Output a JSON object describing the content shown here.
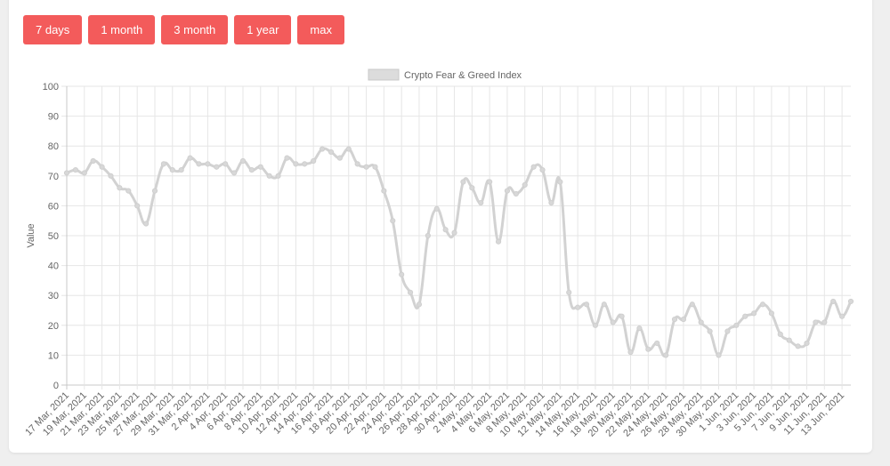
{
  "range_buttons": [
    {
      "label": "7 days"
    },
    {
      "label": "1 month"
    },
    {
      "label": "3 month"
    },
    {
      "label": "1 year"
    },
    {
      "label": "max"
    }
  ],
  "colors": {
    "button_bg": "#f35b5b",
    "line": "#d2d2d2",
    "grid": "#e6e6e6",
    "axis_text": "#666666"
  },
  "chart_data": {
    "type": "line",
    "title": "",
    "legend": [
      "Crypto Fear & Greed Index"
    ],
    "legend_position": "top",
    "xlabel": "",
    "ylabel": "Value",
    "ylim": [
      0,
      100
    ],
    "yticks": [
      0,
      10,
      20,
      30,
      40,
      50,
      60,
      70,
      80,
      90,
      100
    ],
    "grid": true,
    "x_tick_labels": [
      "17 Mar, 2021",
      "19 Mar, 2021",
      "21 Mar, 2021",
      "23 Mar, 2021",
      "25 Mar, 2021",
      "27 Mar, 2021",
      "29 Mar, 2021",
      "31 Mar, 2021",
      "2 Apr, 2021",
      "4 Apr, 2021",
      "6 Apr, 2021",
      "8 Apr, 2021",
      "10 Apr, 2021",
      "12 Apr, 2021",
      "14 Apr, 2021",
      "16 Apr, 2021",
      "18 Apr, 2021",
      "20 Apr, 2021",
      "22 Apr, 2021",
      "24 Apr, 2021",
      "26 Apr, 2021",
      "28 Apr, 2021",
      "30 Apr, 2021",
      "2 May, 2021",
      "4 May, 2021",
      "6 May, 2021",
      "8 May, 2021",
      "10 May, 2021",
      "12 May, 2021",
      "14 May, 2021",
      "16 May, 2021",
      "18 May, 2021",
      "20 May, 2021",
      "22 May, 2021",
      "24 May, 2021",
      "26 May, 2021",
      "28 May, 2021",
      "30 May, 2021",
      "1 Jun, 2021",
      "3 Jun, 2021",
      "5 Jun, 2021",
      "7 Jun, 2021",
      "9 Jun, 2021",
      "11 Jun, 2021",
      "13 Jun, 2021"
    ],
    "series": [
      {
        "name": "Crypto Fear & Greed Index",
        "values": [
          71,
          72,
          71,
          75,
          73,
          70,
          66,
          65,
          60,
          54,
          65,
          74,
          72,
          72,
          76,
          74,
          74,
          73,
          74,
          71,
          75,
          72,
          73,
          70,
          70,
          76,
          74,
          74,
          75,
          79,
          78,
          76,
          79,
          74,
          73,
          73,
          65,
          55,
          37,
          31,
          27,
          50,
          59,
          52,
          51,
          68,
          66,
          61,
          68,
          48,
          65,
          64,
          67,
          73,
          72,
          61,
          68,
          31,
          26,
          27,
          20,
          27,
          21,
          23,
          11,
          19,
          12,
          14,
          10,
          22,
          22,
          27,
          21,
          18,
          10,
          18,
          20,
          23,
          24,
          27,
          24,
          17,
          15,
          13,
          14,
          21,
          21,
          28,
          23,
          28
        ]
      }
    ]
  }
}
